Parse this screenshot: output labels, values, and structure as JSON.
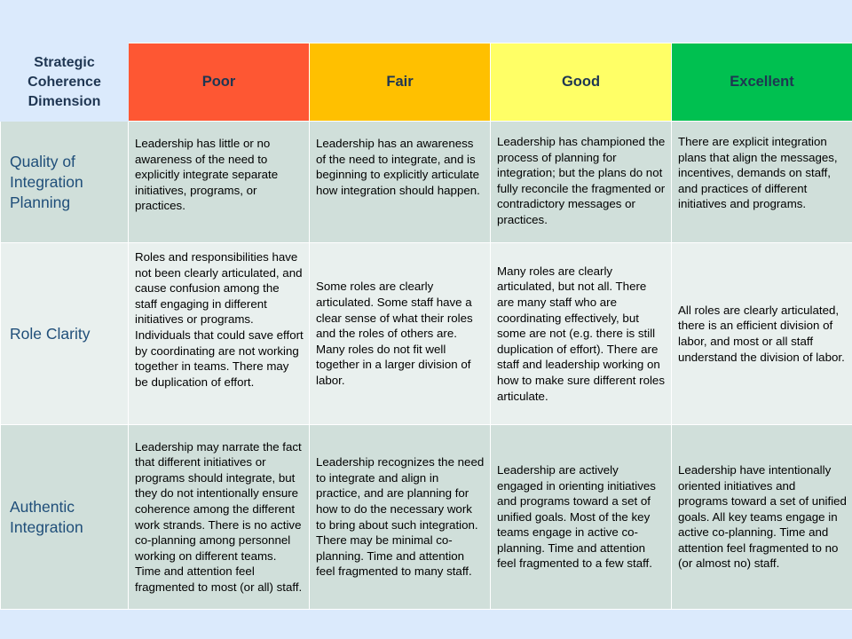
{
  "header": {
    "dimension": "Strategic Coherence Dimension",
    "poor": "Poor",
    "fair": "Fair",
    "good": "Good",
    "excellent": "Excellent"
  },
  "rows": [
    {
      "label": "Quality of Integration Planning",
      "poor": "Leadership has little or no awareness of the need to explicitly integrate separate initiatives, programs, or practices.",
      "fair": "Leadership has an awareness of the need to integrate, and is beginning to explicitly articulate how integration should happen.",
      "good": "Leadership has championed the process of planning for integration; but the plans do not fully reconcile the fragmented or contradictory messages or practices.",
      "excellent": "There are explicit integration plans that align the messages, incentives, demands on staff, and practices of different initiatives and programs."
    },
    {
      "label": "Role Clarity",
      "poor": "Roles and responsibilities have not been clearly articulated, and cause confusion among the staff engaging in different initiatives or programs. Individuals that could save effort by coordinating are not working together in teams. There may be duplication of effort.",
      "fair": "Some roles are clearly articulated. Some staff have a clear sense of what their roles and the roles of others are. Many roles do not fit well together in a larger division of labor.",
      "good": "Many roles are clearly articulated, but not all. There are many staff who are coordinating effectively, but some are not (e.g. there is still duplication of effort). There are staff and leadership working on how to make sure different roles articulate.",
      "excellent": "All roles are clearly articulated, there is an efficient division of labor, and most or all staff understand the division of labor."
    },
    {
      "label": "Authentic Integration",
      "poor": "Leadership may narrate  the fact that different initiatives or programs should integrate, but they do not intentionally ensure coherence among the different work strands. There is no active co-planning among personnel working on different teams. Time and attention feel fragmented to most (or all) staff.",
      "fair": "Leadership recognizes the need to integrate and align in practice, and are planning for how to do the necessary work to bring about such integration. There may be minimal co-planning. Time and attention feel fragmented to many staff.",
      "good": "Leadership are actively engaged in orienting initiatives and programs toward a set of unified goals. Most of the key teams engage in active co-planning. Time and attention feel fragmented to a few staff.",
      "excellent": "Leadership have intentionally oriented initiatives and programs toward a set of unified goals. All key teams engage in active co-planning. Time and attention feel fragmented to no (or almost no) staff."
    }
  ]
}
